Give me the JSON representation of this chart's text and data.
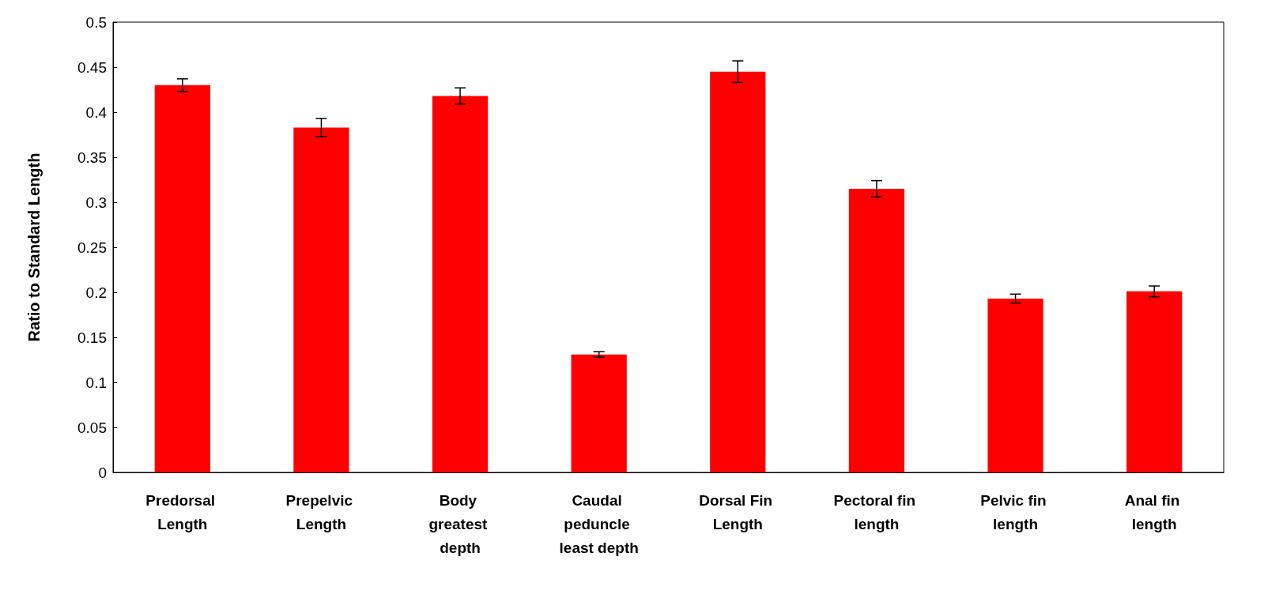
{
  "chart_data": {
    "type": "bar",
    "ylabel": "Ratio to Standard Length",
    "categories": [
      "Predorsal Length",
      "Prepelvic Length",
      "Body greatest depth",
      "Caudal peduncle least depth",
      "Dorsal Fin Length",
      "Pectoral fin length",
      "Pelvic fin length",
      "Anal fin length"
    ],
    "values": [
      0.43,
      0.383,
      0.418,
      0.131,
      0.445,
      0.315,
      0.193,
      0.201
    ],
    "errors": [
      0.007,
      0.01,
      0.009,
      0.003,
      0.012,
      0.009,
      0.005,
      0.006
    ],
    "color": "#ff0000",
    "ylim": [
      0,
      0.5
    ],
    "yticks": [
      0,
      0.05,
      0.1,
      0.15,
      0.2,
      0.25,
      0.3,
      0.35,
      0.4,
      0.45,
      0.5
    ],
    "grid": false
  }
}
